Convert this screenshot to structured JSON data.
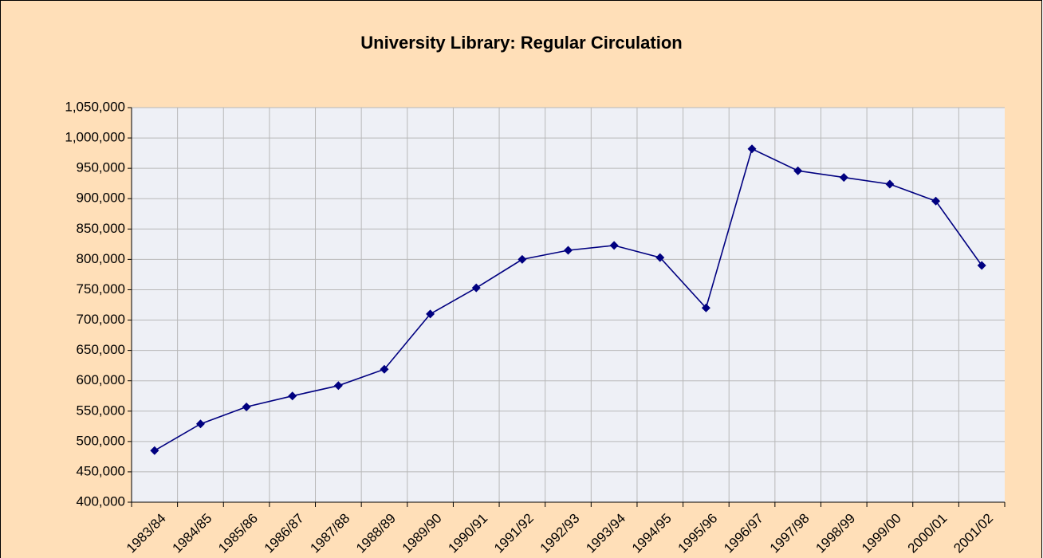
{
  "chart_data": {
    "type": "line",
    "title": "University Library:  Regular Circulation",
    "categories": [
      "1983/84",
      "1984/85",
      "1985/86",
      "1986/87",
      "1987/88",
      "1988/89",
      "1989/90",
      "1990/91",
      "1991/92",
      "1992/93",
      "1993/94",
      "1994/95",
      "1995/96",
      "1996/97",
      "1997/98",
      "1998/99",
      "1999/00",
      "2000/01",
      "2001/02"
    ],
    "values": [
      485000,
      529000,
      557000,
      575000,
      592000,
      619000,
      710000,
      753000,
      800000,
      815000,
      823000,
      803000,
      720000,
      982000,
      946000,
      935000,
      924000,
      896000,
      790000
    ],
    "color": "#000080",
    "ylim": [
      400000,
      1050000
    ],
    "yticks": [
      {
        "value": 400000,
        "label": "400,000"
      },
      {
        "value": 450000,
        "label": "450,000"
      },
      {
        "value": 500000,
        "label": "500,000"
      },
      {
        "value": 550000,
        "label": "550,000"
      },
      {
        "value": 600000,
        "label": "600,000"
      },
      {
        "value": 650000,
        "label": "650,000"
      },
      {
        "value": 700000,
        "label": "700,000"
      },
      {
        "value": 750000,
        "label": "750,000"
      },
      {
        "value": 800000,
        "label": "800,000"
      },
      {
        "value": 850000,
        "label": "850,000"
      },
      {
        "value": 900000,
        "label": "900,000"
      },
      {
        "value": 950000,
        "label": "950,000"
      },
      {
        "value": 1000000,
        "label": "1,000,000"
      },
      {
        "value": 1050000,
        "label": "1,050,000"
      }
    ],
    "grid": true
  }
}
